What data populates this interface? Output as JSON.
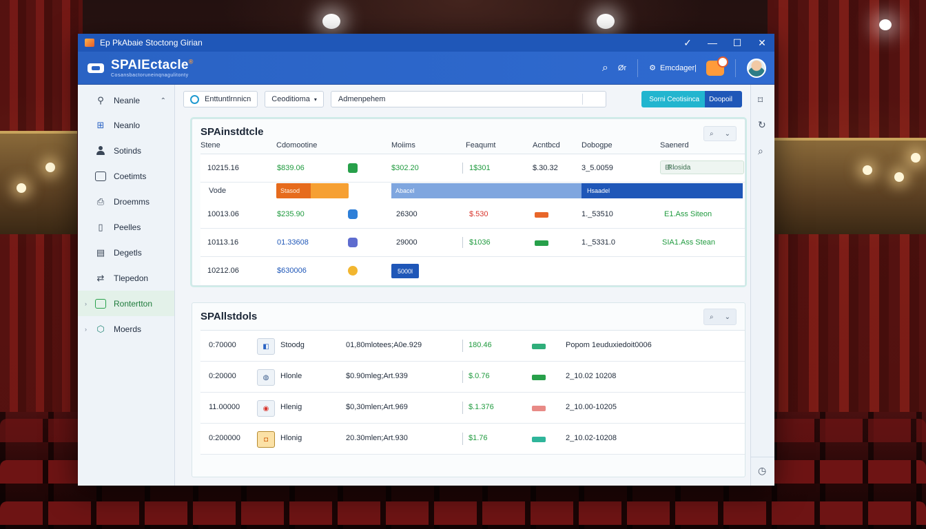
{
  "window": {
    "title": "Ep PkAbaie Stoctong Girian",
    "controls": {
      "pin": "✓",
      "minimize": "—",
      "maximize": "☐",
      "close": "✕"
    }
  },
  "header": {
    "brand": "SPAIEctacle",
    "brand_badge": "®",
    "brand_sub": "Cosansbactoruneinqnagulitonty",
    "quick_label": "Ør",
    "user_label": "Emcdager|"
  },
  "sidebar": {
    "items": [
      {
        "label": "Neanle",
        "icon": "pin-icon"
      },
      {
        "label": "Neanlo",
        "icon": "network-icon"
      },
      {
        "label": "Sotinds",
        "icon": "person-icon"
      },
      {
        "label": "Coetimts",
        "icon": "folder-icon"
      },
      {
        "label": "Droemms",
        "icon": "document-icon"
      },
      {
        "label": "Peelles",
        "icon": "page-icon"
      },
      {
        "label": "Degetls",
        "icon": "calendar-icon"
      },
      {
        "label": "Tlepedon",
        "icon": "transfer-icon"
      },
      {
        "label": "Rontertton",
        "icon": "chat-icon"
      },
      {
        "label": "Moerds",
        "icon": "shield-icon"
      }
    ]
  },
  "toolbar": {
    "primary_button": "Enttuntlrnnicn",
    "filter_button": "Ceoditioma",
    "search_value": "Admenpehem",
    "cta_left": "Sorni Ceotisinca",
    "cta_right": "Doopoil"
  },
  "panel_one": {
    "title": "SPAinstdtcle",
    "columns": [
      "Stene",
      "Cdomootine",
      "Moiims",
      "Feaqumt",
      "Acntbcd",
      "Dobogpe",
      "Saenerd"
    ],
    "rows": [
      {
        "id": "10215.16",
        "amount": "$839.06",
        "mid": "$302.20",
        "freq": "1$301",
        "acnt": "$.30.32",
        "dob": "3_5.0059",
        "status": "Rlosida",
        "status_icon": "⊟"
      },
      {
        "id": "10013.06",
        "amount": "$235.90",
        "mid": "26300",
        "freq": "$.530",
        "dob": "1._53510",
        "status": "E1.Ass Siteon"
      },
      {
        "id": "10113.16",
        "amount": "01.33608",
        "mid": "29000",
        "freq": "$1036",
        "dob": "1._5331.0",
        "status": "SIA1.Ass Stean"
      },
      {
        "id": "10212.06",
        "amount": "$630006",
        "button": "5000l"
      }
    ],
    "band": {
      "label": "Vode",
      "orange": "Stasod",
      "blue_light": "Abacel",
      "blue_dark": "Hsaadel"
    }
  },
  "panel_two": {
    "title": "SPAllstdols",
    "rows": [
      {
        "time": "0:70000",
        "name": "Stoodg",
        "desc": "01,80mlotees;A0e.929",
        "price": "180.46",
        "pill": "green",
        "note": "Popom 1euduxiedoit0006"
      },
      {
        "time": "0:20000",
        "name": "Hlonle",
        "desc": "$0.90mleg;Art.939",
        "price": "$.0.76",
        "pill": "green",
        "note": "2_10.02 10208"
      },
      {
        "time": "11.00000",
        "name": "Hlenig",
        "desc": "$0,30mlen;Art.969",
        "price": "$.1.376",
        "pill": "red",
        "note": "2_10.00-10205"
      },
      {
        "time": "0:200000",
        "name": "Hlonig",
        "desc": "20.30mlen;Art.930",
        "price": "$1.76",
        "pill": "teal",
        "note": "2_10.02-10208"
      }
    ]
  },
  "colors": {
    "accent_blue": "#1f57b8",
    "teal": "#22b5cf",
    "green": "#27a04a",
    "orange": "#f6a033",
    "red": "#d9342b"
  }
}
